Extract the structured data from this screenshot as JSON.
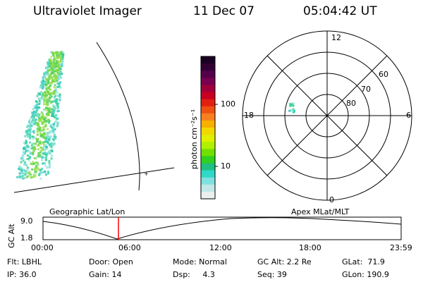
{
  "header": {
    "instrument": "Ultraviolet Imager",
    "date": "11 Dec 07",
    "time": "05:04:42 UT"
  },
  "colorbar": {
    "label": "photon cm⁻²s⁻¹",
    "ticks": [
      "100",
      "10"
    ],
    "colors": [
      "#1a0022",
      "#330033",
      "#55004a",
      "#7a0050",
      "#a0003a",
      "#c80020",
      "#e02010",
      "#f05010",
      "#f88020",
      "#f8b000",
      "#f0d800",
      "#e0f000",
      "#b0f000",
      "#70e000",
      "#30d020",
      "#20c080",
      "#30d8c8",
      "#80e0e0",
      "#c0e8e8",
      "#e8f0f0"
    ]
  },
  "polar": {
    "mlt_labels": [
      "12",
      "18",
      "6",
      "0"
    ],
    "lat_labels": [
      "60",
      "70",
      "80"
    ]
  },
  "timeline": {
    "left_title": "Geographic Lat/Lon",
    "right_title": "Apex MLat/MLT",
    "axis_label": "GC Alt",
    "y_ticks": [
      "9.0",
      "1.8"
    ],
    "x_ticks": [
      "00:00",
      "06:00",
      "12:00",
      "18:00",
      "23:59"
    ],
    "marker_color": "#ff0000"
  },
  "status": {
    "flt": "Flt: LBHL",
    "ip": "IP: 36.0",
    "door": "Door: Open",
    "gain": "Gain: 14",
    "mode": "Mode: Normal",
    "dsp": "Dsp:     4.3",
    "gc_alt": "GC Alt: 2.2 Re",
    "seq": "Seq: 39",
    "glat": "GLat:  71.9",
    "glon": "GLon: 190.9"
  }
}
